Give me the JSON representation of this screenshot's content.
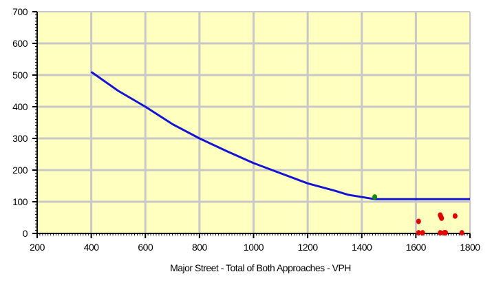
{
  "chart_data": {
    "type": "scatter",
    "title": "",
    "xlabel": "Major Street - Total of Both Approaches - VPH",
    "ylabel": "",
    "xlim": [
      200,
      1800
    ],
    "ylim": [
      0,
      700
    ],
    "x_ticks": [
      200,
      400,
      600,
      800,
      1000,
      1200,
      1400,
      1600,
      1800
    ],
    "y_ticks": [
      0,
      100,
      200,
      300,
      400,
      500,
      600,
      700
    ],
    "x_tick_labels": [
      "200",
      "400",
      "600",
      "800",
      "1000",
      "1200",
      "1400",
      "1600",
      "1800"
    ],
    "y_tick_labels": [
      "0",
      "100",
      "200",
      "300",
      "400",
      "500",
      "600",
      "700"
    ],
    "grid": true,
    "plot_background": "#ffffc0",
    "series": [
      {
        "kind": "line",
        "color": "#1414d2",
        "points": [
          [
            400,
            510
          ],
          [
            500,
            450
          ],
          [
            600,
            400
          ],
          [
            700,
            345
          ],
          [
            800,
            300
          ],
          [
            900,
            260
          ],
          [
            1000,
            222
          ],
          [
            1100,
            190
          ],
          [
            1200,
            158
          ],
          [
            1300,
            135
          ],
          [
            1350,
            122
          ],
          [
            1450,
            108
          ],
          [
            1800,
            108
          ]
        ]
      },
      {
        "kind": "scatter",
        "color": "#e00000",
        "points": [
          [
            1610,
            38
          ],
          [
            1610,
            2
          ],
          [
            1625,
            2
          ],
          [
            1690,
            58
          ],
          [
            1693,
            52
          ],
          [
            1695,
            48
          ],
          [
            1690,
            2
          ],
          [
            1705,
            2
          ],
          [
            1710,
            2
          ],
          [
            1745,
            55
          ],
          [
            1770,
            2
          ]
        ]
      },
      {
        "kind": "scatter",
        "color": "#138a13",
        "points": [
          [
            1448,
            115
          ]
        ]
      }
    ]
  }
}
